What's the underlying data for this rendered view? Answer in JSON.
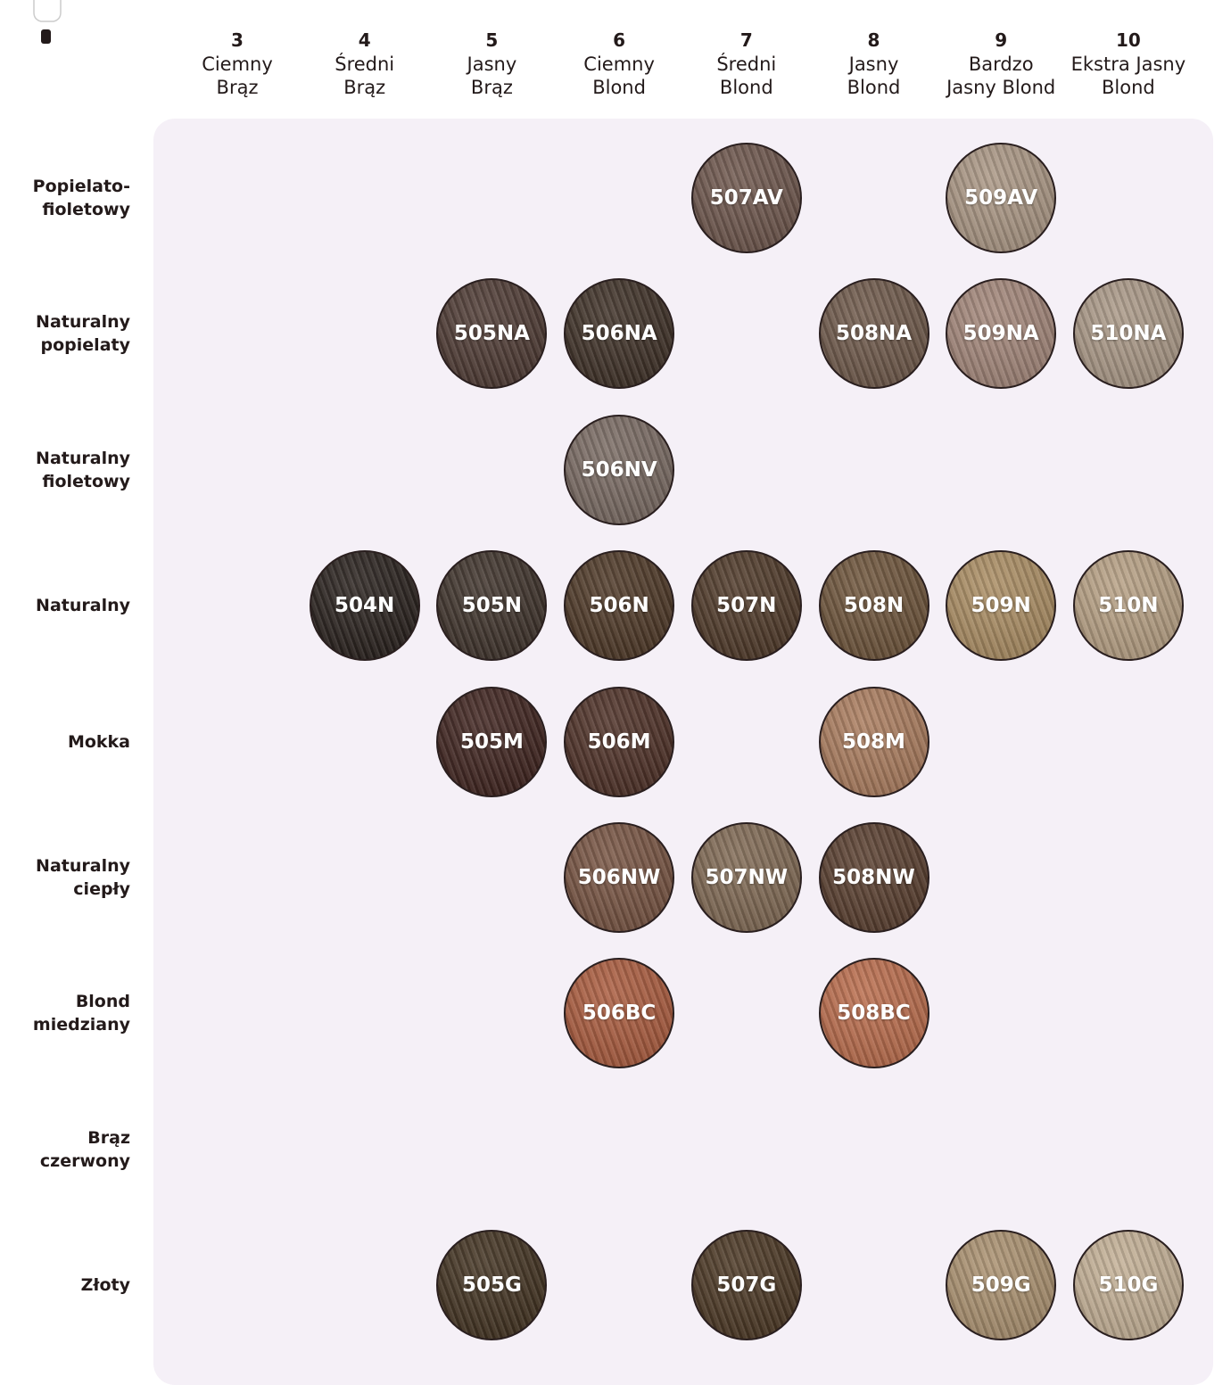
{
  "columns": [
    {
      "level": "3",
      "name": [
        "Ciemny",
        "Brąz"
      ]
    },
    {
      "level": "4",
      "name": [
        "Średni",
        "Brąz"
      ]
    },
    {
      "level": "5",
      "name": [
        "Jasny",
        "Brąz"
      ]
    },
    {
      "level": "6",
      "name": [
        "Ciemny",
        "Blond"
      ]
    },
    {
      "level": "7",
      "name": [
        "Średni",
        "Blond"
      ]
    },
    {
      "level": "8",
      "name": [
        "Jasny",
        "Blond"
      ]
    },
    {
      "level": "9",
      "name": [
        "Bardzo",
        "Jasny Blond"
      ]
    },
    {
      "level": "10",
      "name": [
        "Ekstra Jasny",
        "Blond"
      ]
    }
  ],
  "rows": [
    {
      "label": [
        "Popielato-",
        "fioletowy"
      ],
      "cells": [
        null,
        null,
        null,
        null,
        {
          "code": "507AV",
          "color": "#6a5248"
        },
        null,
        {
          "code": "509AV",
          "color": "#a89481"
        },
        null
      ]
    },
    {
      "label": [
        "Naturalny",
        "popielaty"
      ],
      "cells": [
        null,
        null,
        {
          "code": "505NA",
          "color": "#4a362f"
        },
        {
          "code": "506NA",
          "color": "#3a2c22"
        },
        null,
        {
          "code": "508NA",
          "color": "#6b5546"
        },
        {
          "code": "509NA",
          "color": "#a08376"
        },
        {
          "code": "510NA",
          "color": "#a89684"
        }
      ]
    },
    {
      "label": [
        "Naturalny",
        "fioletowy"
      ],
      "cells": [
        null,
        null,
        null,
        {
          "code": "506NV",
          "color": "#76675f"
        },
        null,
        null,
        null,
        null
      ]
    },
    {
      "label": [
        "Naturalny"
      ],
      "cells": [
        null,
        {
          "code": "504N",
          "color": "#241c18"
        },
        {
          "code": "505N",
          "color": "#3a2e26"
        },
        {
          "code": "506N",
          "color": "#4a3422"
        },
        {
          "code": "507N",
          "color": "#4b3524"
        },
        {
          "code": "508N",
          "color": "#6a5036"
        },
        {
          "code": "509N",
          "color": "#a88a5f"
        },
        {
          "code": "510N",
          "color": "#b59e81"
        }
      ]
    },
    {
      "label": [
        "Mokka"
      ],
      "cells": [
        null,
        null,
        {
          "code": "505M",
          "color": "#3b1f1a"
        },
        {
          "code": "506M",
          "color": "#4a2c22"
        },
        null,
        {
          "code": "508M",
          "color": "#a8795a"
        },
        null,
        null
      ]
    },
    {
      "label": [
        "Naturalny",
        "ciepły"
      ],
      "cells": [
        null,
        null,
        null,
        {
          "code": "506NW",
          "color": "#74503e"
        },
        {
          "code": "507NW",
          "color": "#7d6650"
        },
        {
          "code": "508NW",
          "color": "#553a2a"
        },
        null,
        null
      ]
    },
    {
      "label": [
        "Blond",
        "miedziany"
      ],
      "cells": [
        null,
        null,
        null,
        {
          "code": "506BC",
          "color": "#a8583a"
        },
        null,
        {
          "code": "508BC",
          "color": "#b86948"
        },
        null,
        null
      ]
    },
    {
      "label": [
        "Brąz",
        "czerwony"
      ],
      "cells": [
        null,
        null,
        null,
        null,
        null,
        null,
        null,
        null
      ]
    },
    {
      "label": [
        "Złoty"
      ],
      "cells": [
        null,
        null,
        {
          "code": "505G",
          "color": "#3e2e1c"
        },
        null,
        {
          "code": "507G",
          "color": "#47331f"
        },
        null,
        {
          "code": "509G",
          "color": "#a88e6c"
        },
        {
          "code": "510G",
          "color": "#c2ae93"
        }
      ]
    }
  ]
}
